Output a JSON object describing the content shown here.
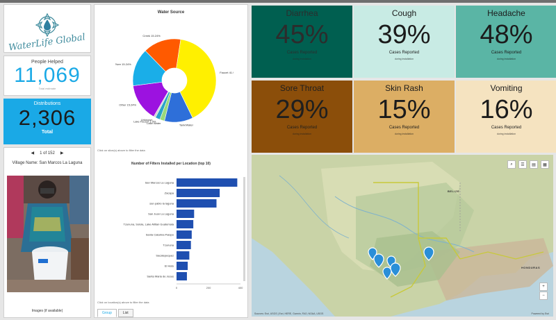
{
  "app": {
    "logo_text": "WaterLife Global"
  },
  "people": {
    "label": "People Helped",
    "value": "11,069",
    "sub": "Total estimate"
  },
  "distributions": {
    "label": "Distributions",
    "value": "2,306",
    "sub": "Total"
  },
  "village": {
    "pager_text": "1 of 152",
    "name": "Village Name: San Marcos La Laguna",
    "images_label": "Images (if available)"
  },
  "water_source": {
    "title": "Water Source",
    "note": "Click on slice(s) above to filter the data"
  },
  "filters_chart": {
    "title": "Number of Filters Installed per Location (top 10)",
    "note": "Click on location(s) above to filter the data"
  },
  "tabs": {
    "group": "Group",
    "list": "List"
  },
  "symptoms": [
    {
      "name": "Diarrhea",
      "value": "45%",
      "label": "Cases Reported",
      "sub": "during installation",
      "bg": "#005f50",
      "fg": "#2c2c2c"
    },
    {
      "name": "Cough",
      "value": "39%",
      "label": "Cases Reported",
      "sub": "during installation",
      "bg": "#c8ebe4",
      "fg": "#1b1b1b"
    },
    {
      "name": "Headache",
      "value": "48%",
      "label": "Cases Reported",
      "sub": "during installation",
      "bg": "#5ab5a5",
      "fg": "#1b1b1b"
    },
    {
      "name": "Sore Throat",
      "value": "29%",
      "label": "Cases Reported",
      "sub": "during installation",
      "bg": "#8b4e0a",
      "fg": "#1f1f1f"
    },
    {
      "name": "Skin Rash",
      "value": "15%",
      "label": "Cases Reported",
      "sub": "during installation",
      "bg": "#dcae64",
      "fg": "#1b1b1b"
    },
    {
      "name": "Vomiting",
      "value": "16%",
      "label": "Cases Reported",
      "sub": "during installation",
      "bg": "#f5e3c0",
      "fg": "#1b1b1b"
    }
  ],
  "map": {
    "attribution": "Sources: Esri, USGS | Esri, HERE, Garmin, FAO, NOAA, USGS",
    "powered_by": "Powered by Esri",
    "labels": {
      "belize": "BELIZE",
      "honduras": "HONDURAS"
    }
  },
  "chart_data": [
    {
      "type": "pie",
      "title": "Water Source",
      "slices": [
        {
          "label": "Faucet 41.9%",
          "value": 41.9,
          "color": "#fff000"
        },
        {
          "label": "Tank/Water",
          "value": 11.5,
          "color": "#2e6fd9"
        },
        {
          "label": "Lake Water",
          "value": 1.9,
          "color": "#9ad97a"
        },
        {
          "label": "Lake Faucet 1.9%",
          "value": 1.9,
          "color": "#2aa4c8"
        },
        {
          "label": "Unknown",
          "value": 0.8,
          "color": "#d0d0d0"
        },
        {
          "label": "Other 15.24%",
          "value": 15.24,
          "color": "#9c12e0"
        },
        {
          "label": "River 15.24%",
          "value": 15.24,
          "color": "#1aaee8"
        },
        {
          "label": "Creek 15.24%",
          "value": 15.24,
          "color": "#ff5a00"
        }
      ]
    },
    {
      "type": "bar",
      "title": "Number of Filters Installed per Location (top 10)",
      "orientation": "horizontal",
      "categories": [
        "San Marcos La Laguna",
        "Zacapa",
        "san pablo la laguna",
        "San Juan La Laguna",
        "Tzununa, Solola, Lake Atitlan Guatemala",
        "Santa Catarina Palopo",
        "Tzununa",
        "Sacatepequez",
        "El Hato",
        "Santa Maria de Jesus"
      ],
      "values": [
        380,
        270,
        250,
        110,
        105,
        95,
        90,
        80,
        70,
        65
      ],
      "xlim": [
        0,
        400
      ],
      "xticks": [
        "0",
        "200",
        "400"
      ],
      "color": "#1f4fb0"
    }
  ]
}
